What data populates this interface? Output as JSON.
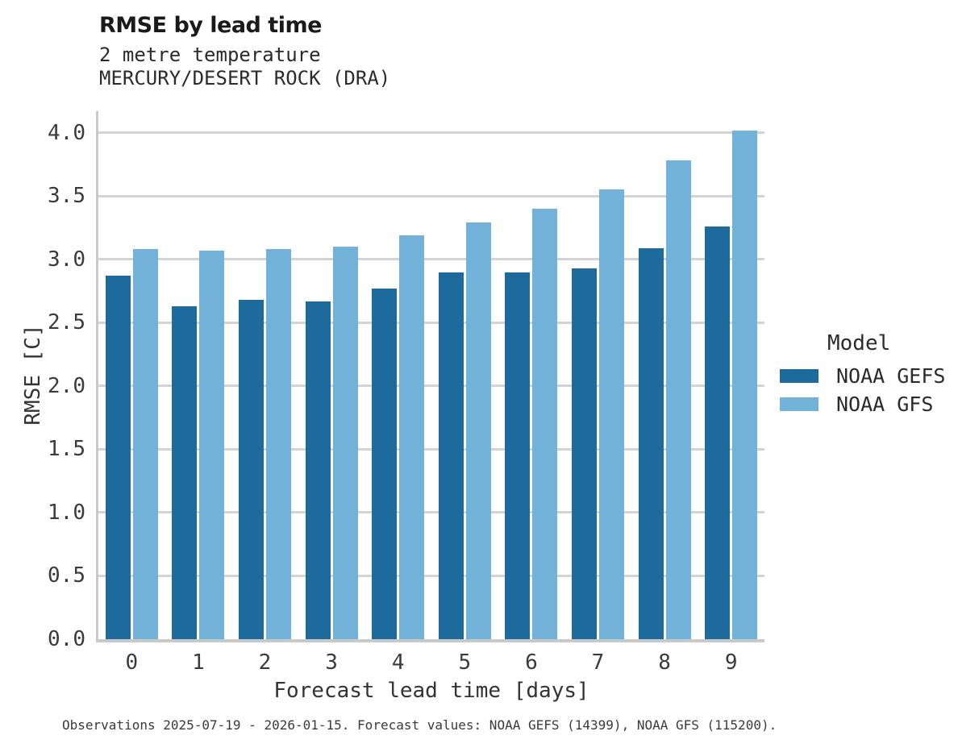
{
  "title": "RMSE by lead time",
  "subtitle_line1": "2 metre temperature",
  "subtitle_line2": "MERCURY/DESERT ROCK (DRA)",
  "caption": "Observations 2025-07-19 - 2026-01-15. Forecast values: NOAA GEFS (14399), NOAA GFS (115200).",
  "legend": {
    "title": "Model",
    "entries": [
      {
        "label": "NOAA GEFS",
        "color": "#1c6b9c"
      },
      {
        "label": "NOAA GFS",
        "color": "#72b2d9"
      }
    ]
  },
  "colors": {
    "gefs_bar": "#1c6b9c",
    "gfs_bar": "#72b2d9",
    "gridline": "#d4d4d4",
    "axis_line": "#c9c9c9",
    "text": "#2b2b2b"
  },
  "chart_data": {
    "type": "bar",
    "title": "RMSE by lead time",
    "subtitle": [
      "2 metre temperature",
      "MERCURY/DESERT ROCK (DRA)"
    ],
    "xlabel": "Forecast lead time [days]",
    "ylabel": "RMSE [C]",
    "categories": [
      "0",
      "1",
      "2",
      "3",
      "4",
      "5",
      "6",
      "7",
      "8",
      "9"
    ],
    "series": [
      {
        "name": "NOAA GEFS",
        "color": "#1c6b9c",
        "values": [
          2.87,
          2.63,
          2.68,
          2.67,
          2.77,
          2.9,
          2.9,
          2.93,
          3.09,
          3.26
        ]
      },
      {
        "name": "NOAA GFS",
        "color": "#72b2d9",
        "values": [
          3.08,
          3.07,
          3.08,
          3.1,
          3.19,
          3.29,
          3.4,
          3.55,
          3.78,
          4.02
        ]
      }
    ],
    "ylim": [
      0,
      4.17
    ],
    "yticks": [
      0.0,
      0.5,
      1.0,
      1.5,
      2.0,
      2.5,
      3.0,
      3.5,
      4.0
    ],
    "grid": true,
    "legend_title": "Model",
    "legend_position": "right",
    "note": "Observations 2025-07-19 - 2026-01-15. Forecast values: NOAA GEFS (14399), NOAA GFS (115200)."
  }
}
